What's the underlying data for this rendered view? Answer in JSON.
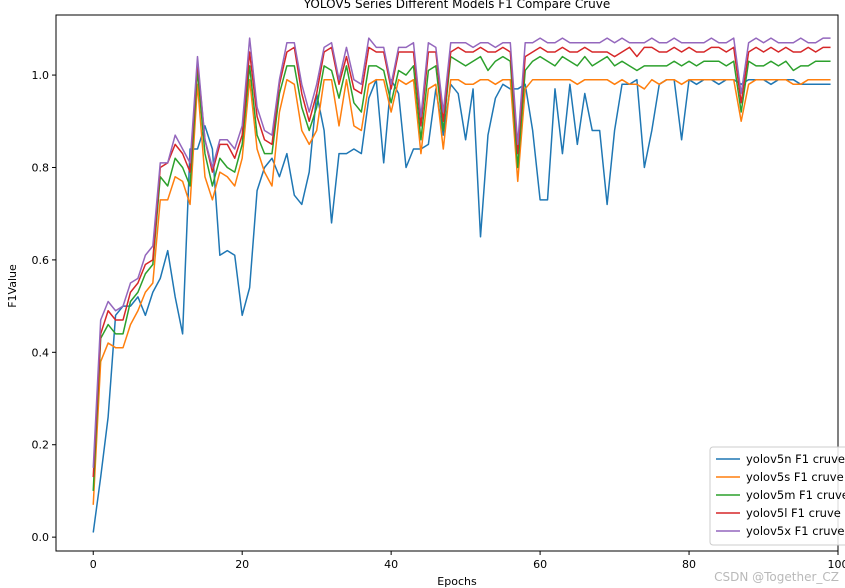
{
  "chart_data": {
    "type": "line",
    "title": "YOLOV5 Series Different Models F1 Compare Cruve",
    "xlabel": "Epochs",
    "ylabel": "F1Value",
    "xlim": [
      -5,
      100
    ],
    "ylim": [
      -0.03,
      1.13
    ],
    "xticks": [
      0,
      20,
      40,
      60,
      80,
      100
    ],
    "yticks": [
      0.0,
      0.2,
      0.4,
      0.6,
      0.8,
      1.0
    ],
    "xtick_labels": [
      "0",
      "20",
      "40",
      "60",
      "80",
      "100"
    ],
    "ytick_labels": [
      "0.0",
      "0.2",
      "0.4",
      "0.6",
      "0.8",
      "1.0"
    ],
    "grid": false,
    "legend_position": "lower-right",
    "x": [
      0,
      1,
      2,
      3,
      4,
      5,
      6,
      7,
      8,
      9,
      10,
      11,
      12,
      13,
      14,
      15,
      16,
      17,
      18,
      19,
      20,
      21,
      22,
      23,
      24,
      25,
      26,
      27,
      28,
      29,
      30,
      31,
      32,
      33,
      34,
      35,
      36,
      37,
      38,
      39,
      40,
      41,
      42,
      43,
      44,
      45,
      46,
      47,
      48,
      49,
      50,
      51,
      52,
      53,
      54,
      55,
      56,
      57,
      58,
      59,
      60,
      61,
      62,
      63,
      64,
      65,
      66,
      67,
      68,
      69,
      70,
      71,
      72,
      73,
      74,
      75,
      76,
      77,
      78,
      79,
      80,
      81,
      82,
      83,
      84,
      85,
      86,
      87,
      88,
      89,
      90,
      91,
      92,
      93,
      94,
      95,
      96,
      97,
      98,
      99
    ],
    "series": [
      {
        "name": "yolov5n F1 cruve",
        "color": "#1f77b4",
        "values": [
          0.01,
          0.13,
          0.26,
          0.48,
          0.5,
          0.5,
          0.52,
          0.48,
          0.53,
          0.56,
          0.62,
          0.52,
          0.44,
          0.84,
          0.84,
          0.89,
          0.84,
          0.61,
          0.62,
          0.61,
          0.48,
          0.54,
          0.75,
          0.8,
          0.82,
          0.78,
          0.83,
          0.74,
          0.72,
          0.79,
          0.96,
          0.88,
          0.68,
          0.83,
          0.83,
          0.84,
          0.83,
          0.95,
          0.99,
          0.81,
          0.99,
          0.96,
          0.8,
          0.84,
          0.84,
          0.85,
          0.97,
          0.87,
          0.98,
          0.96,
          0.86,
          0.97,
          0.65,
          0.87,
          0.95,
          0.98,
          0.97,
          0.97,
          0.98,
          0.88,
          0.73,
          0.73,
          0.97,
          0.83,
          0.98,
          0.85,
          0.96,
          0.88,
          0.88,
          0.72,
          0.88,
          0.98,
          0.98,
          0.99,
          0.8,
          0.88,
          0.98,
          0.99,
          0.99,
          0.86,
          0.99,
          0.98,
          0.99,
          0.99,
          0.98,
          0.99,
          0.99,
          0.98,
          0.99,
          0.99,
          0.99,
          0.98,
          0.99,
          0.99,
          0.99,
          0.98,
          0.98,
          0.98,
          0.98,
          0.98
        ]
      },
      {
        "name": "yolov5s F1 cruve",
        "color": "#ff7f0e",
        "values": [
          0.07,
          0.38,
          0.42,
          0.41,
          0.41,
          0.46,
          0.49,
          0.53,
          0.55,
          0.73,
          0.73,
          0.78,
          0.77,
          0.72,
          0.98,
          0.78,
          0.73,
          0.79,
          0.78,
          0.76,
          0.82,
          0.99,
          0.84,
          0.79,
          0.76,
          0.92,
          0.99,
          0.98,
          0.88,
          0.85,
          0.88,
          0.99,
          0.99,
          0.89,
          0.99,
          0.89,
          0.88,
          0.98,
          0.99,
          0.99,
          0.92,
          0.99,
          0.98,
          0.99,
          0.83,
          0.97,
          0.98,
          0.84,
          0.99,
          0.99,
          0.98,
          0.98,
          0.99,
          0.99,
          0.98,
          0.99,
          0.99,
          0.77,
          0.97,
          0.99,
          0.99,
          0.99,
          0.99,
          0.99,
          0.99,
          0.98,
          0.99,
          0.99,
          0.99,
          0.99,
          0.98,
          0.99,
          0.98,
          0.98,
          0.97,
          0.99,
          0.98,
          0.99,
          0.99,
          0.98,
          0.99,
          0.99,
          0.99,
          0.99,
          0.99,
          0.99,
          0.99,
          0.9,
          0.98,
          0.99,
          0.99,
          0.99,
          0.99,
          0.99,
          0.98,
          0.98,
          0.99,
          0.99,
          0.99,
          0.99
        ]
      },
      {
        "name": "yolov5m F1 cruve",
        "color": "#2ca02c",
        "values": [
          0.1,
          0.43,
          0.46,
          0.44,
          0.44,
          0.51,
          0.53,
          0.57,
          0.59,
          0.78,
          0.76,
          0.82,
          0.8,
          0.76,
          1.01,
          0.83,
          0.76,
          0.82,
          0.8,
          0.79,
          0.85,
          1.02,
          0.87,
          0.83,
          0.83,
          0.96,
          1.02,
          1.02,
          0.93,
          0.88,
          0.93,
          1.02,
          1.01,
          0.95,
          1.02,
          0.94,
          0.92,
          1.02,
          1.02,
          1.01,
          0.94,
          1.01,
          1.0,
          1.02,
          0.86,
          1.01,
          1.02,
          0.88,
          1.04,
          1.03,
          1.02,
          1.03,
          1.04,
          1.01,
          1.03,
          1.04,
          1.03,
          0.8,
          1.01,
          1.03,
          1.04,
          1.03,
          1.02,
          1.04,
          1.03,
          1.02,
          1.04,
          1.02,
          1.03,
          1.04,
          1.02,
          1.03,
          1.02,
          1.01,
          1.02,
          1.02,
          1.02,
          1.02,
          1.03,
          1.02,
          1.03,
          1.02,
          1.03,
          1.03,
          1.03,
          1.02,
          1.03,
          0.92,
          1.03,
          1.02,
          1.02,
          1.03,
          1.02,
          1.03,
          1.01,
          1.02,
          1.02,
          1.03,
          1.03,
          1.03
        ]
      },
      {
        "name": "yolov5l F1 cruve",
        "color": "#d62728",
        "values": [
          0.13,
          0.44,
          0.49,
          0.47,
          0.47,
          0.53,
          0.55,
          0.59,
          0.6,
          0.8,
          0.81,
          0.85,
          0.83,
          0.79,
          1.03,
          0.86,
          0.79,
          0.85,
          0.85,
          0.82,
          0.87,
          1.05,
          0.91,
          0.86,
          0.85,
          0.98,
          1.05,
          1.06,
          0.96,
          0.9,
          0.96,
          1.05,
          1.06,
          0.98,
          1.04,
          0.97,
          0.96,
          1.06,
          1.05,
          1.05,
          0.97,
          1.05,
          1.05,
          1.05,
          0.89,
          1.05,
          1.05,
          0.9,
          1.05,
          1.06,
          1.05,
          1.05,
          1.06,
          1.05,
          1.05,
          1.06,
          1.05,
          0.83,
          1.04,
          1.05,
          1.06,
          1.05,
          1.05,
          1.06,
          1.05,
          1.05,
          1.06,
          1.05,
          1.05,
          1.05,
          1.04,
          1.05,
          1.06,
          1.04,
          1.06,
          1.06,
          1.05,
          1.05,
          1.06,
          1.05,
          1.06,
          1.05,
          1.05,
          1.06,
          1.06,
          1.05,
          1.06,
          0.94,
          1.05,
          1.06,
          1.05,
          1.06,
          1.05,
          1.06,
          1.05,
          1.05,
          1.06,
          1.05,
          1.06,
          1.06
        ]
      },
      {
        "name": "yolov5x F1 cruve",
        "color": "#9467bd",
        "values": [
          0.15,
          0.47,
          0.51,
          0.49,
          0.5,
          0.55,
          0.56,
          0.61,
          0.63,
          0.81,
          0.81,
          0.87,
          0.84,
          0.81,
          1.04,
          0.86,
          0.8,
          0.86,
          0.86,
          0.84,
          0.89,
          1.08,
          0.93,
          0.88,
          0.87,
          0.99,
          1.07,
          1.07,
          0.98,
          0.92,
          0.98,
          1.06,
          1.07,
          0.99,
          1.06,
          0.99,
          0.98,
          1.08,
          1.06,
          1.06,
          0.98,
          1.06,
          1.06,
          1.07,
          0.91,
          1.07,
          1.06,
          0.92,
          1.07,
          1.07,
          1.07,
          1.06,
          1.07,
          1.07,
          1.06,
          1.07,
          1.07,
          0.85,
          1.07,
          1.07,
          1.08,
          1.07,
          1.07,
          1.08,
          1.07,
          1.07,
          1.07,
          1.07,
          1.07,
          1.08,
          1.07,
          1.08,
          1.07,
          1.07,
          1.07,
          1.08,
          1.07,
          1.07,
          1.08,
          1.07,
          1.07,
          1.07,
          1.07,
          1.08,
          1.07,
          1.07,
          1.08,
          0.96,
          1.07,
          1.08,
          1.07,
          1.08,
          1.07,
          1.07,
          1.07,
          1.08,
          1.07,
          1.07,
          1.08,
          1.08
        ]
      }
    ]
  },
  "watermark": "CSDN @Together_CZ"
}
